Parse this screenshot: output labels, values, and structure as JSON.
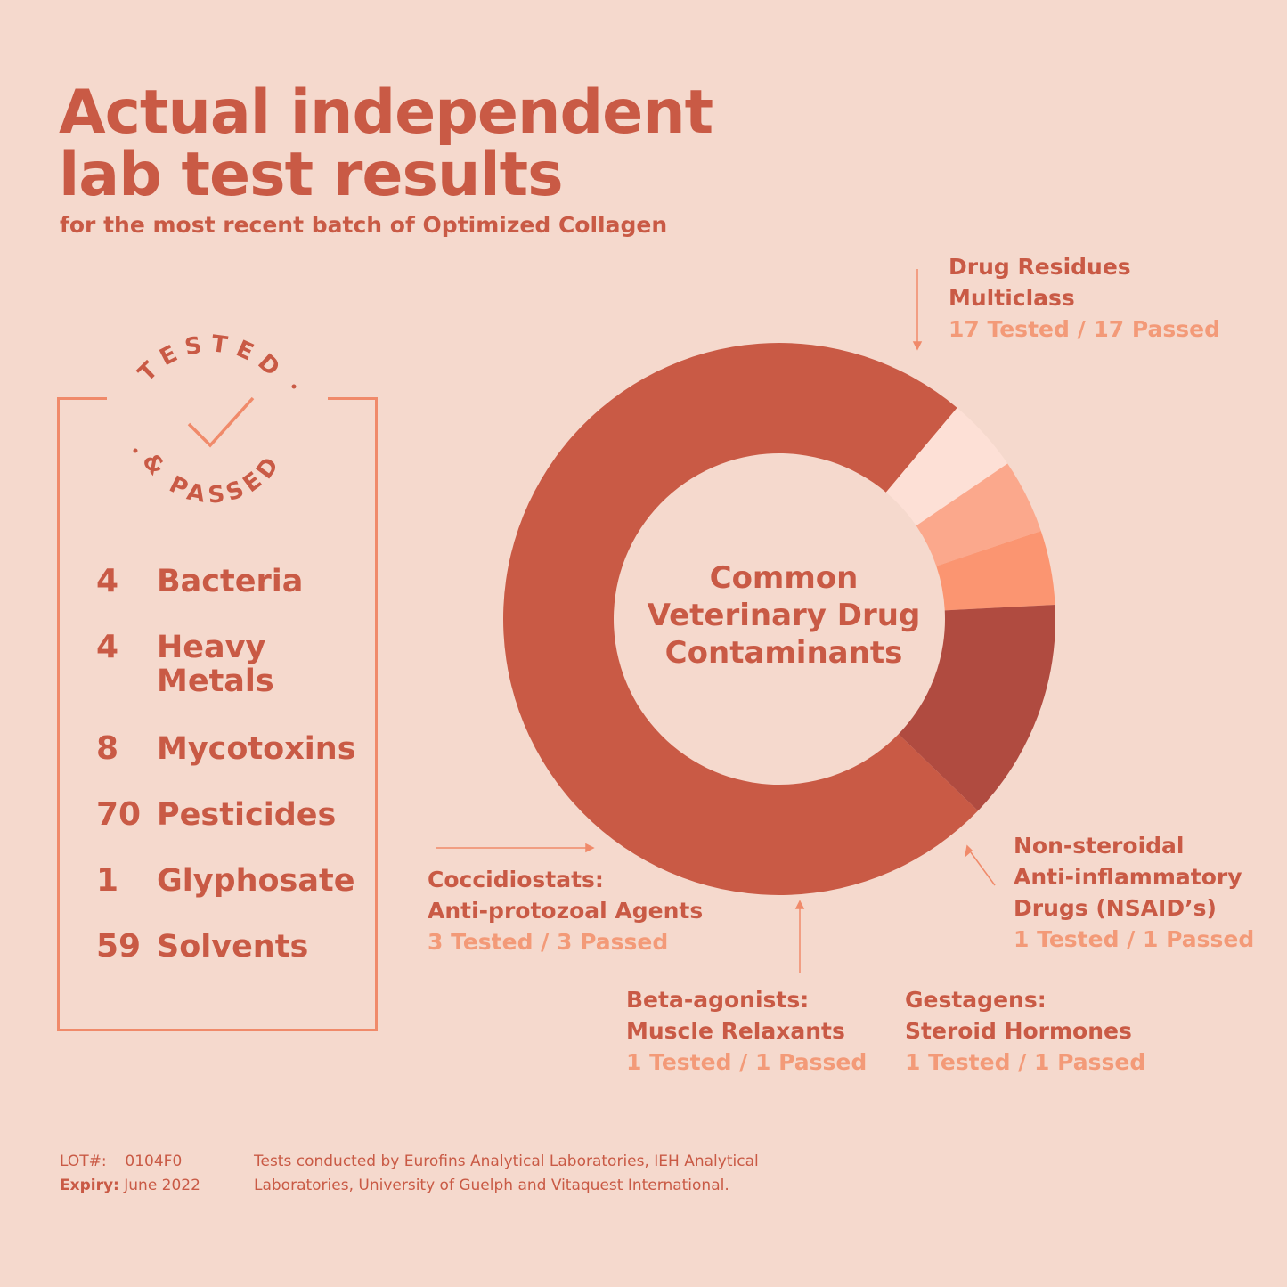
{
  "header": {
    "title_line1": "Actual independent",
    "title_line2": "lab test results",
    "subtitle": "for the most recent batch of Optimized Collagen"
  },
  "badge": {
    "top_text": "TESTED",
    "bottom_text": "& PASSED",
    "icon": "checkmark-icon"
  },
  "tests": [
    {
      "count": "4",
      "name": "Bacteria"
    },
    {
      "count": "4",
      "name": "Heavy Metals"
    },
    {
      "count": "8",
      "name": "Mycotoxins"
    },
    {
      "count": "70",
      "name": "Pesticides"
    },
    {
      "count": "1",
      "name": "Glyphosate"
    },
    {
      "count": "59",
      "name": "Solvents"
    }
  ],
  "donut": {
    "center_line1": "Common",
    "center_line2": "Veterinary Drug",
    "center_line3": "Contaminants",
    "segments": [
      {
        "label_line1": "Drug Residues",
        "label_line2": "Multiclass",
        "result": "17 Tested / 17 Passed",
        "value": 17,
        "color": "#c95a45"
      },
      {
        "label_line1": "Non-steroidal",
        "label_line2": "Anti-inflammatory",
        "label_line3": "Drugs (NSAID’s)",
        "result": "1 Tested / 1 Passed",
        "value": 1,
        "color": "#fde0d6"
      },
      {
        "label_line1": "Gestagens:",
        "label_line2": "Steroid Hormones",
        "result": "1 Tested / 1 Passed",
        "value": 1,
        "color": "#fba88c"
      },
      {
        "label_line1": "Beta-agonists:",
        "label_line2": "Muscle Relaxants",
        "result": "1 Tested / 1 Passed",
        "value": 1,
        "color": "#fb9571"
      },
      {
        "label_line1": "Coccidiostats:",
        "label_line2": "Anti-protozoal Agents",
        "result": "3 Tested / 3 Passed",
        "value": 3,
        "color": "#b04b40"
      }
    ]
  },
  "footer": {
    "lot_label": "LOT#:",
    "lot_value": "0104F0",
    "expiry_label": "Expiry:",
    "expiry_value": "June 2022",
    "note_line1": "Tests conducted by Eurofins Analytical Laboratories, IEH Analytical",
    "note_line2": "Laboratories, University of Guelph and Vitaquest International."
  }
}
